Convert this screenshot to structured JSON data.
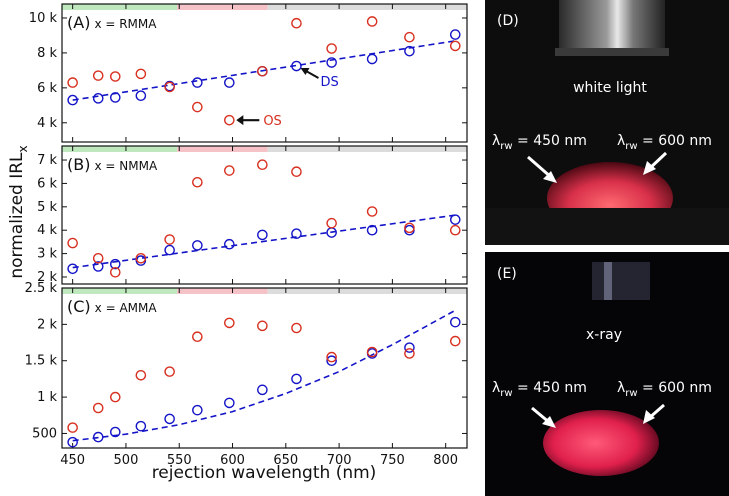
{
  "figure": {
    "ylabel_main": "normalized IRL",
    "ylabel_sub": "x",
    "xlabel": "rejection wavelength (nm)"
  },
  "chart_data": [
    {
      "type": "scatter",
      "panel_letter": "(A)",
      "panel_text": "x = RMMA",
      "x_ticks": [
        "450",
        "500",
        "550",
        "600",
        "650",
        "700",
        "750",
        "800"
      ],
      "xlim": [
        440,
        820
      ],
      "ylim": [
        2900,
        10800
      ],
      "y_ticks": [
        {
          "v": 4000,
          "t": "4 k"
        },
        {
          "v": 6000,
          "t": "6 k"
        },
        {
          "v": 8000,
          "t": "8 k"
        },
        {
          "v": 10000,
          "t": "10 k"
        }
      ],
      "fit_line": [
        [
          450,
          5300
        ],
        [
          810,
          8700
        ]
      ],
      "series": [
        {
          "name": "DS",
          "color": "#1414c8",
          "x": [
            450,
            474,
            490,
            514,
            541,
            567,
            597,
            628,
            660,
            693,
            731,
            766,
            809
          ],
          "y": [
            5300,
            5400,
            5450,
            5550,
            6100,
            6300,
            6300,
            6950,
            7250,
            7450,
            7650,
            8100,
            9050
          ]
        },
        {
          "name": "OS",
          "color": "#d83020",
          "x": [
            450,
            474,
            490,
            514,
            541,
            567,
            597,
            628,
            660,
            693,
            731,
            766,
            809
          ],
          "y": [
            6300,
            6700,
            6650,
            6800,
            6050,
            4900,
            4150,
            6950,
            9700,
            8250,
            9800,
            8900,
            8400
          ]
        }
      ],
      "annotations": [
        {
          "text": "DS",
          "color": "#1414c8",
          "target": [
            660,
            7250
          ]
        },
        {
          "text": "OS",
          "color": "#d83020",
          "target": [
            597,
            4150
          ]
        }
      ]
    },
    {
      "type": "scatter",
      "panel_letter": "(B)",
      "panel_text": "x = NMMA",
      "x_ticks": [
        "450",
        "500",
        "550",
        "600",
        "650",
        "700",
        "750",
        "800"
      ],
      "xlim": [
        440,
        820
      ],
      "ylim": [
        1700,
        7600
      ],
      "y_ticks": [
        {
          "v": 2000,
          "t": "2 k"
        },
        {
          "v": 3000,
          "t": "3 k"
        },
        {
          "v": 4000,
          "t": "4 k"
        },
        {
          "v": 5000,
          "t": "5 k"
        },
        {
          "v": 6000,
          "t": "6 k"
        },
        {
          "v": 7000,
          "t": "7 k"
        }
      ],
      "fit_line": [
        [
          450,
          2400
        ],
        [
          810,
          4650
        ]
      ],
      "series": [
        {
          "name": "DS",
          "color": "#1414c8",
          "x": [
            450,
            474,
            490,
            514,
            541,
            567,
            597,
            628,
            660,
            693,
            731,
            766,
            809
          ],
          "y": [
            2350,
            2450,
            2550,
            2700,
            3150,
            3350,
            3400,
            3800,
            3850,
            3900,
            4000,
            4000,
            4450
          ]
        },
        {
          "name": "OS",
          "color": "#d83020",
          "x": [
            450,
            474,
            490,
            514,
            541,
            567,
            597,
            628,
            660,
            693,
            731,
            766,
            809
          ],
          "y": [
            3450,
            2800,
            2200,
            2800,
            3600,
            6050,
            6550,
            6800,
            6500,
            4300,
            4800,
            4100,
            4000
          ]
        }
      ]
    },
    {
      "type": "scatter",
      "panel_letter": "(C)",
      "panel_text": "x = AMMA",
      "x_ticks": [
        "450",
        "500",
        "550",
        "600",
        "650",
        "700",
        "750",
        "800"
      ],
      "xlim": [
        440,
        820
      ],
      "ylim": [
        300,
        2500
      ],
      "y_ticks": [
        {
          "v": 500,
          "t": "500"
        },
        {
          "v": 1000,
          "t": "1 k"
        },
        {
          "v": 1500,
          "t": "1.5 k"
        },
        {
          "v": 2000,
          "t": "2 k"
        },
        {
          "v": 2500,
          "t": "2.5 k"
        }
      ],
      "fit_curve": [
        [
          450,
          400
        ],
        [
          500,
          490
        ],
        [
          550,
          620
        ],
        [
          600,
          800
        ],
        [
          650,
          1050
        ],
        [
          700,
          1350
        ],
        [
          750,
          1720
        ],
        [
          810,
          2200
        ]
      ],
      "series": [
        {
          "name": "DS",
          "color": "#1414c8",
          "x": [
            450,
            474,
            490,
            514,
            541,
            567,
            597,
            628,
            660,
            693,
            731,
            766,
            809
          ],
          "y": [
            380,
            450,
            520,
            600,
            700,
            820,
            920,
            1100,
            1250,
            1500,
            1600,
            1680,
            2030
          ]
        },
        {
          "name": "OS",
          "color": "#d83020",
          "x": [
            450,
            474,
            490,
            514,
            541,
            567,
            597,
            628,
            660,
            693,
            731,
            766,
            809
          ],
          "y": [
            580,
            850,
            1000,
            1300,
            1350,
            1830,
            2020,
            1980,
            1950,
            1550,
            1620,
            1600,
            1770
          ]
        }
      ]
    }
  ],
  "photos": {
    "top": {
      "letter": "(D)",
      "label": "white light",
      "lambda_left": "λ",
      "lambda_left_sub": "rw",
      "lambda_left_val": " = 450 nm",
      "lambda_right": "λ",
      "lambda_right_sub": "rw",
      "lambda_right_val": " = 600 nm"
    },
    "bottom": {
      "letter": "(E)",
      "label": "x-ray",
      "lambda_left": "λ",
      "lambda_left_sub": "rw",
      "lambda_left_val": " = 450 nm",
      "lambda_right": "λ",
      "lambda_right_sub": "rw",
      "lambda_right_val": " = 600 nm"
    }
  },
  "colors": {
    "ds": "#1414c8",
    "os": "#d83020",
    "green_band": "#bfe8bf",
    "pink_band": "#f5c2c8",
    "gray_band": "#dcdcdc"
  }
}
